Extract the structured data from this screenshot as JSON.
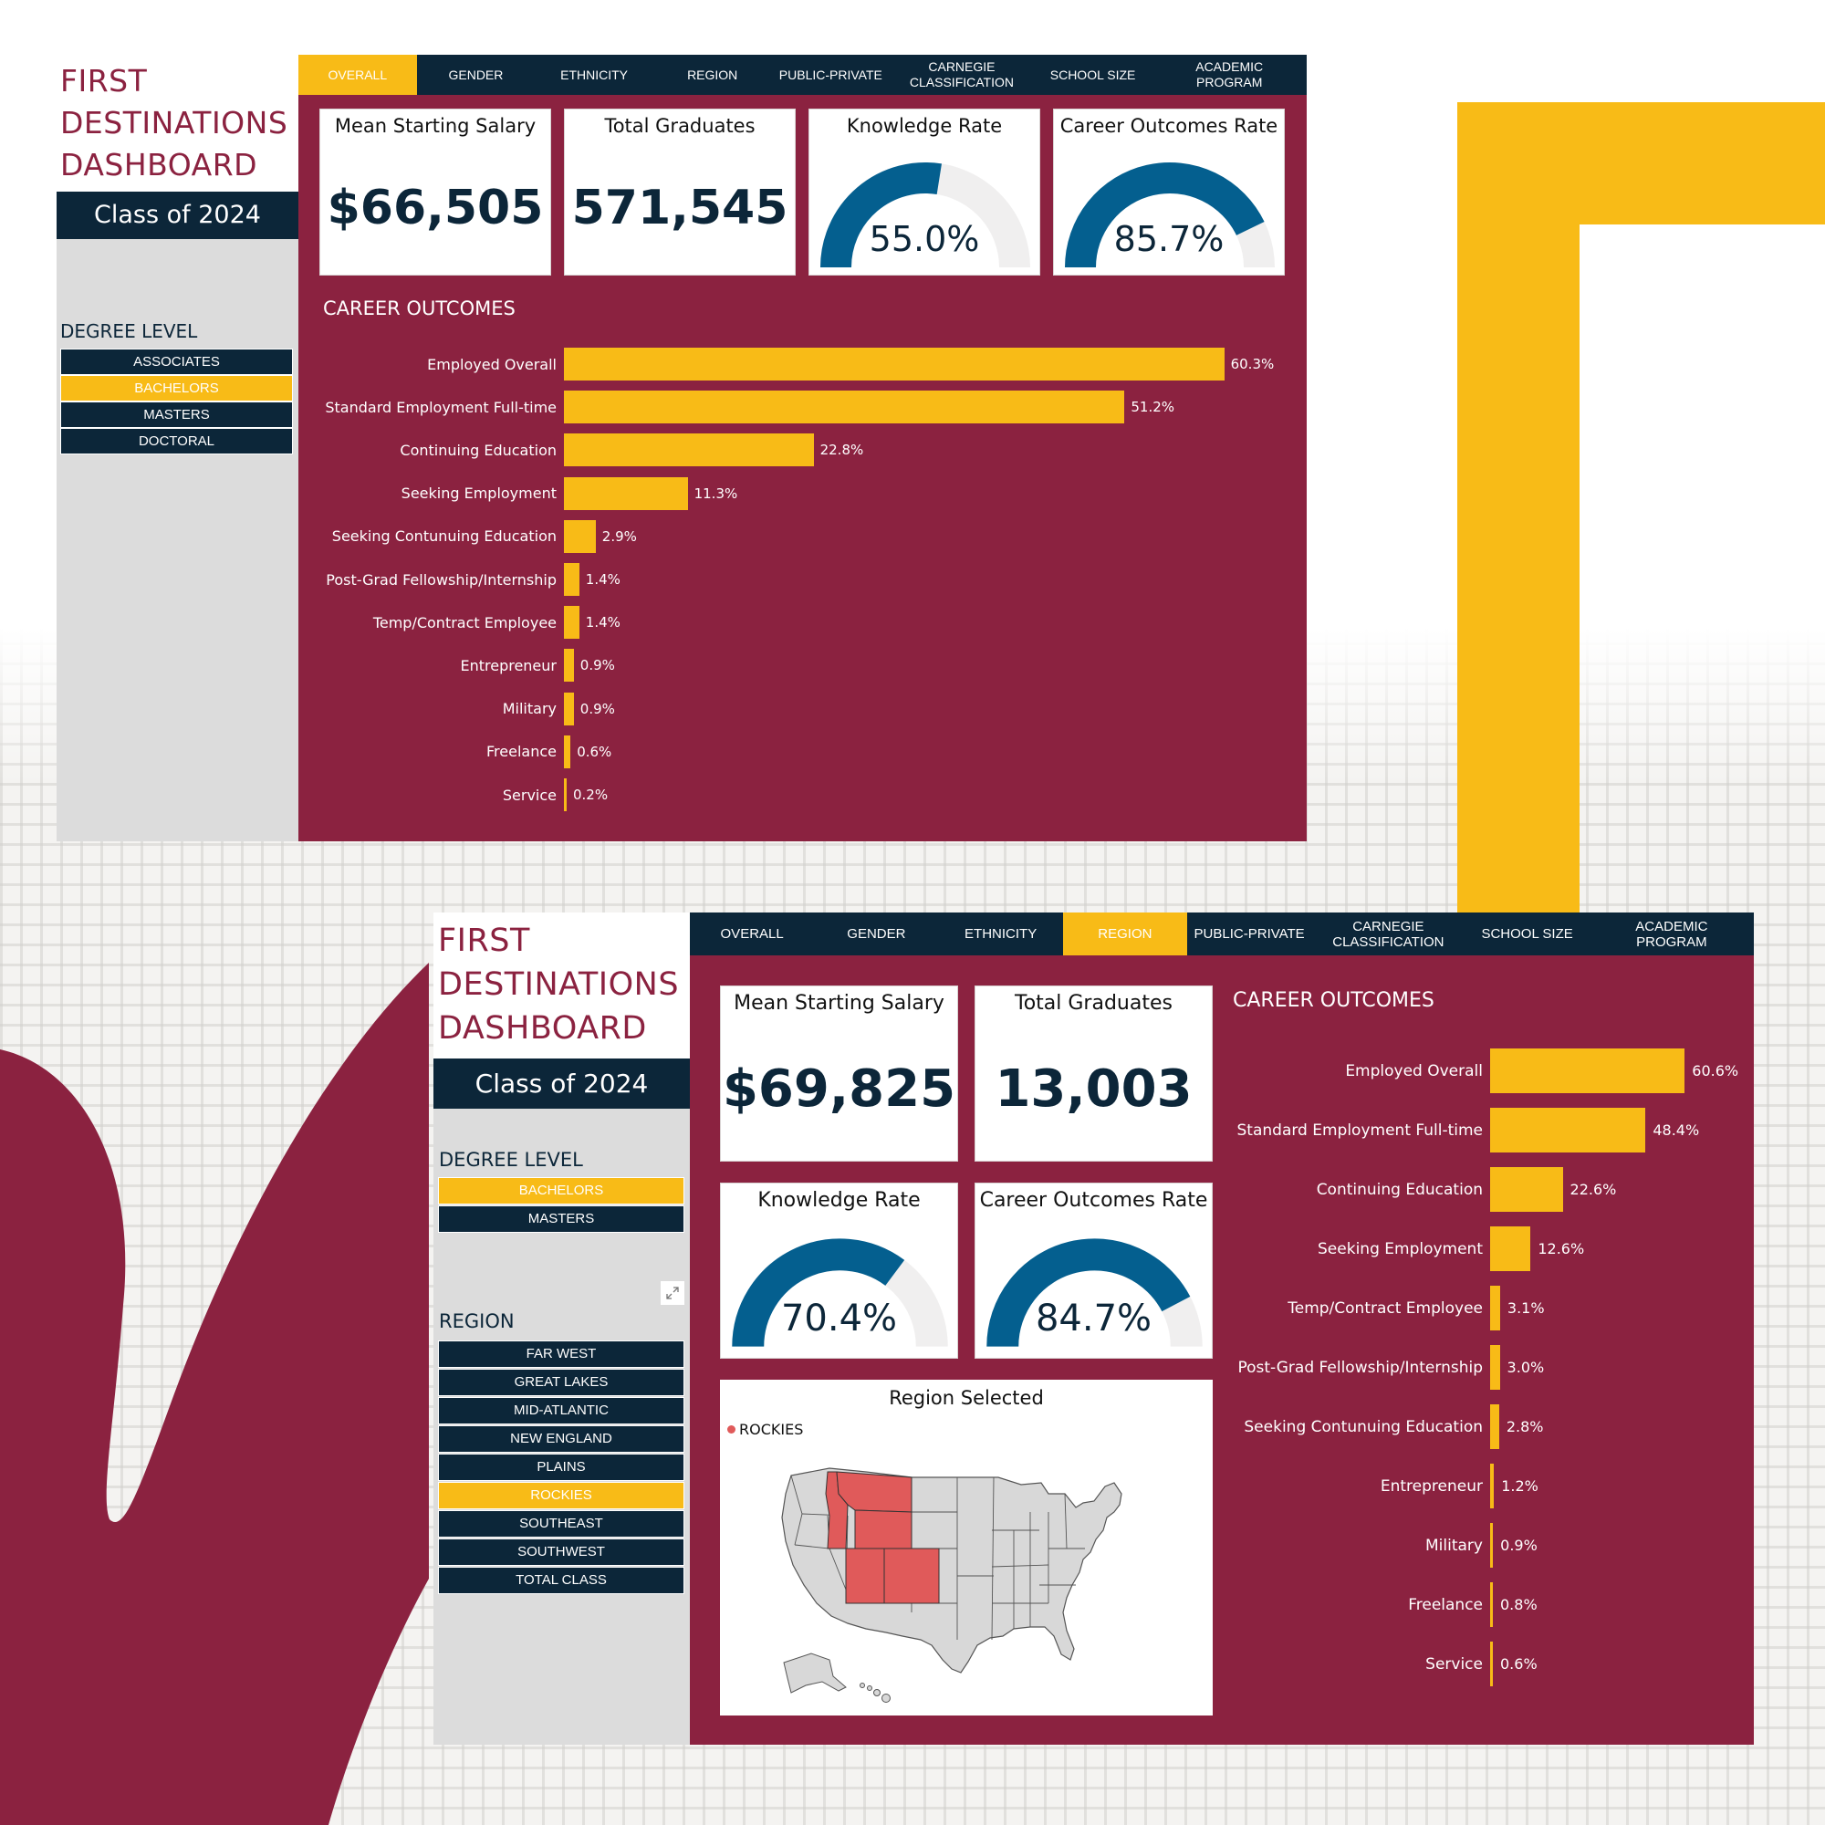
{
  "colors": {
    "maroon": "#8b2240",
    "navy": "#0c2639",
    "gold": "#f8bb17",
    "gauge_blue": "#045f8f",
    "gauge_track": "#f0efef",
    "region_highlight": "#e05a5a",
    "map_gray": "#d8d8d8"
  },
  "dash1": {
    "title_lines": [
      "FIRST",
      "DESTINATIONS",
      "DASHBOARD"
    ],
    "class_label": "Class of 2024",
    "degree_label": "DEGREE LEVEL",
    "degree_levels": [
      {
        "label": "ASSOCIATES",
        "active": false
      },
      {
        "label": "BACHELORS",
        "active": true
      },
      {
        "label": "MASTERS",
        "active": false
      },
      {
        "label": "DOCTORAL",
        "active": false
      }
    ],
    "tabs": [
      {
        "label": "OVERALL",
        "active": true
      },
      {
        "label": "GENDER",
        "active": false
      },
      {
        "label": "ETHNICITY",
        "active": false
      },
      {
        "label": "REGION",
        "active": false
      },
      {
        "label": "PUBLIC-PRIVATE",
        "active": false
      },
      {
        "label": "CARNEGIE CLASSIFICATION",
        "active": false
      },
      {
        "label": "SCHOOL SIZE",
        "active": false
      },
      {
        "label": "ACADEMIC PROGRAM",
        "active": false
      }
    ],
    "kpis": {
      "salary_title": "Mean Starting Salary",
      "salary_value": "$66,505",
      "grads_title": "Total Graduates",
      "grads_value": "571,545",
      "knowledge_title": "Knowledge Rate",
      "knowledge_value": "55.0%",
      "knowledge_fraction": 0.55,
      "career_title": "Career Outcomes Rate",
      "career_value": "85.7%",
      "career_fraction": 0.857
    },
    "outcomes_title": "CAREER OUTCOMES"
  },
  "dash2": {
    "title_lines": [
      "FIRST",
      "DESTINATIONS",
      "DASHBOARD"
    ],
    "class_label": "Class of 2024",
    "degree_label": "DEGREE LEVEL",
    "degree_levels": [
      {
        "label": "BACHELORS",
        "active": true
      },
      {
        "label": "MASTERS",
        "active": false
      }
    ],
    "expand_icon": "expand-icon",
    "region_label": "REGION",
    "regions": [
      {
        "label": "FAR WEST",
        "active": false
      },
      {
        "label": "GREAT LAKES",
        "active": false
      },
      {
        "label": "MID-ATLANTIC",
        "active": false
      },
      {
        "label": "NEW ENGLAND",
        "active": false
      },
      {
        "label": "PLAINS",
        "active": false
      },
      {
        "label": "ROCKIES",
        "active": true
      },
      {
        "label": "SOUTHEAST",
        "active": false
      },
      {
        "label": "SOUTHWEST",
        "active": false
      },
      {
        "label": "TOTAL CLASS",
        "active": false
      }
    ],
    "tabs": [
      {
        "label": "OVERALL",
        "active": false
      },
      {
        "label": "GENDER",
        "active": false
      },
      {
        "label": "ETHNICITY",
        "active": false
      },
      {
        "label": "REGION",
        "active": true
      },
      {
        "label": "PUBLIC-PRIVATE",
        "active": false
      },
      {
        "label": "CARNEGIE CLASSIFICATION",
        "active": false
      },
      {
        "label": "SCHOOL SIZE",
        "active": false
      },
      {
        "label": "ACADEMIC PROGRAM",
        "active": false
      }
    ],
    "kpis": {
      "salary_title": "Mean Starting Salary",
      "salary_value": "$69,825",
      "grads_title": "Total Graduates",
      "grads_value": "13,003",
      "knowledge_title": "Knowledge Rate",
      "knowledge_value": "70.4%",
      "knowledge_fraction": 0.704,
      "career_title": "Career Outcomes Rate",
      "career_value": "84.7%",
      "career_fraction": 0.847
    },
    "outcomes_title": "CAREER OUTCOMES",
    "map": {
      "title": "Region Selected",
      "legend": "ROCKIES"
    }
  },
  "chart_data": [
    {
      "type": "bar",
      "title": "CAREER OUTCOMES",
      "orientation": "horizontal",
      "categories": [
        "Employed Overall",
        "Standard Employment Full-time",
        "Continuing Education",
        "Seeking Employment",
        "Seeking Contunuing Education",
        "Post-Grad Fellowship/Internship",
        "Temp/Contract Employee",
        "Entrepreneur",
        "Military",
        "Freelance",
        "Service"
      ],
      "values": [
        60.3,
        51.2,
        22.8,
        11.3,
        2.9,
        1.4,
        1.4,
        0.9,
        0.9,
        0.6,
        0.2
      ],
      "labels": [
        "60.3%",
        "51.2%",
        "22.8%",
        "11.3%",
        "2.9%",
        "1.4%",
        "1.4%",
        "0.9%",
        "0.9%",
        "0.6%",
        "0.2%"
      ]
    },
    {
      "type": "bar",
      "title": "CAREER OUTCOMES",
      "orientation": "horizontal",
      "categories": [
        "Employed Overall",
        "Standard Employment Full-time",
        "Continuing Education",
        "Seeking Employment",
        "Temp/Contract Employee",
        "Post-Grad Fellowship/Internship",
        "Seeking Contunuing Education",
        "Entrepreneur",
        "Military",
        "Freelance",
        "Service"
      ],
      "values": [
        60.6,
        48.4,
        22.6,
        12.6,
        3.1,
        3.0,
        2.8,
        1.2,
        0.9,
        0.8,
        0.6
      ],
      "labels": [
        "60.6%",
        "48.4%",
        "22.6%",
        "12.6%",
        "3.1%",
        "3.0%",
        "2.8%",
        "1.2%",
        "0.9%",
        "0.8%",
        "0.6%"
      ]
    }
  ]
}
